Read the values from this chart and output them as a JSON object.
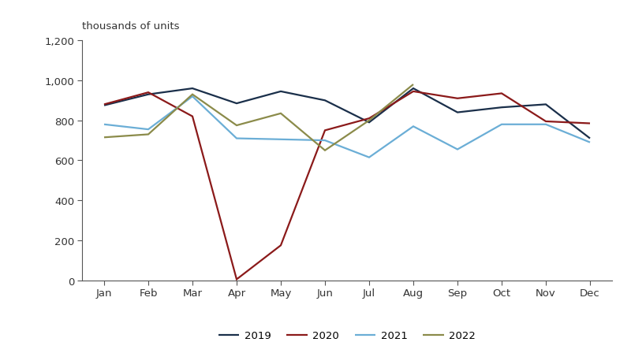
{
  "months": [
    "Jan",
    "Feb",
    "Mar",
    "Apr",
    "May",
    "Jun",
    "Jul",
    "Aug",
    "Sep",
    "Oct",
    "Nov",
    "Dec"
  ],
  "series": {
    "2019": [
      875,
      930,
      960,
      885,
      945,
      900,
      790,
      960,
      840,
      865,
      880,
      710
    ],
    "2020": [
      880,
      940,
      820,
      5,
      175,
      750,
      810,
      945,
      910,
      935,
      795,
      785
    ],
    "2021": [
      780,
      755,
      920,
      710,
      705,
      700,
      615,
      770,
      655,
      780,
      780,
      690
    ],
    "2022": [
      715,
      730,
      930,
      775,
      835,
      650,
      800,
      980,
      null,
      null,
      null,
      null
    ]
  },
  "colors": {
    "2019": "#1a2f4a",
    "2020": "#8b1a1a",
    "2021": "#6baed6",
    "2022": "#8b8b4a"
  },
  "ylabel": "thousands of units",
  "ylim": [
    0,
    1200
  ],
  "yticks": [
    0,
    200,
    400,
    600,
    800,
    1000,
    1200
  ],
  "ytick_labels": [
    "0",
    "200",
    "400",
    "600",
    "800",
    "1,000",
    "1,200"
  ],
  "background_color": "#ffffff",
  "line_width": 1.6,
  "tick_fontsize": 9.5,
  "label_fontsize": 9.5
}
